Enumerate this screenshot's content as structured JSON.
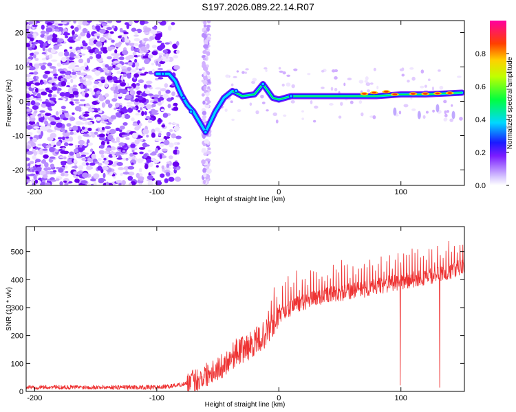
{
  "title": "S197.2026.089.22.14.R07",
  "chart_data": [
    {
      "type": "heatmap",
      "name": "spectrogram",
      "xlabel": "Height of straight line (km)",
      "ylabel": "Frequency (Hz)",
      "xlim": [
        -207,
        152
      ],
      "ylim": [
        -24.5,
        23.5
      ],
      "xticks": [
        -200,
        -100,
        0,
        100
      ],
      "yticks": [
        -20,
        -10,
        0,
        10,
        20
      ],
      "colorbar": {
        "label": "Normalized spectral amplitude",
        "range": [
          0.0,
          1.0
        ],
        "ticks": [
          0.0,
          0.2,
          0.4,
          0.6,
          0.8
        ]
      },
      "trace": [
        {
          "x": -100,
          "y": 8
        },
        {
          "x": -90,
          "y": 8
        },
        {
          "x": -85,
          "y": 6
        },
        {
          "x": -80,
          "y": 2
        },
        {
          "x": -75,
          "y": -1
        },
        {
          "x": -70,
          "y": -3
        },
        {
          "x": -65,
          "y": -6
        },
        {
          "x": -60,
          "y": -9
        },
        {
          "x": -52,
          "y": -3
        },
        {
          "x": -45,
          "y": 1
        },
        {
          "x": -38,
          "y": 3
        },
        {
          "x": -30,
          "y": 1.5
        },
        {
          "x": -20,
          "y": 2
        },
        {
          "x": -13,
          "y": 5
        },
        {
          "x": -5,
          "y": 1
        },
        {
          "x": 0,
          "y": 0.5
        },
        {
          "x": 10,
          "y": 1.5
        },
        {
          "x": 40,
          "y": 1.5
        },
        {
          "x": 80,
          "y": 1.5
        },
        {
          "x": 100,
          "y": 2
        },
        {
          "x": 120,
          "y": 2
        },
        {
          "x": 150,
          "y": 2.5
        }
      ]
    },
    {
      "type": "line",
      "name": "snr",
      "xlabel": "Height of straight line (km)",
      "ylabel": "SNR (10 * v/v)",
      "xlim": [
        -207,
        152
      ],
      "ylim": [
        0,
        590
      ],
      "xticks": [
        -200,
        -100,
        0,
        100
      ],
      "yticks": [
        0,
        100,
        200,
        300,
        400,
        500
      ],
      "color": "#ee3333",
      "x": [
        -207,
        -180,
        -150,
        -120,
        -100,
        -90,
        -80,
        -70,
        -65,
        -60,
        -55,
        -50,
        -45,
        -40,
        -35,
        -30,
        -25,
        -20,
        -15,
        -10,
        -5,
        0,
        10,
        20,
        30,
        40,
        50,
        60,
        70,
        80,
        90,
        100,
        110,
        120,
        130,
        140,
        152
      ],
      "values": [
        15,
        15,
        15,
        15,
        15,
        18,
        25,
        35,
        45,
        60,
        75,
        80,
        95,
        120,
        140,
        150,
        160,
        175,
        190,
        210,
        235,
        265,
        300,
        320,
        335,
        345,
        350,
        360,
        365,
        375,
        385,
        390,
        400,
        410,
        420,
        430,
        450
      ]
    }
  ]
}
